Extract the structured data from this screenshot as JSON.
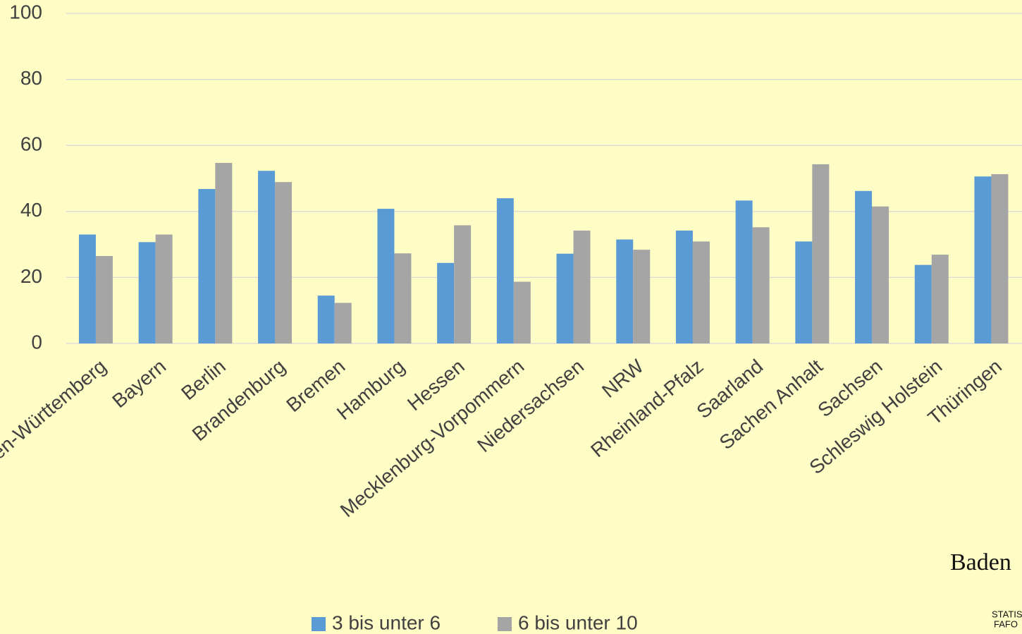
{
  "chart_data": {
    "type": "bar",
    "categories": [
      "Baden-Württemberg",
      "Bayern",
      "Berlin",
      "Brandenburg",
      "Bremen",
      "Hamburg",
      "Hessen",
      "Mecklenburg-Vorpommern",
      "Niedersachsen",
      "NRW",
      "Rheinland-Pfalz",
      "Saarland",
      "Sachen Anhalt",
      "Sachsen",
      "Schleswig Holstein",
      "Thüringen"
    ],
    "series": [
      {
        "name": "3 bis unter 6",
        "color": "#5b9bd5",
        "values": [
          33,
          30.7,
          46.8,
          52.3,
          14.5,
          40.8,
          24.4,
          44,
          27.2,
          31.5,
          34.2,
          43.3,
          30.9,
          46.2,
          23.8,
          50.6
        ]
      },
      {
        "name": "6 bis unter 10",
        "color": "#a5a5a5",
        "values": [
          26.5,
          33,
          54.7,
          48.9,
          12.3,
          27.3,
          35.8,
          18.7,
          34.2,
          28.4,
          30.9,
          35.2,
          54.3,
          41.5,
          26.9,
          51.3
        ]
      }
    ],
    "ylim": [
      0,
      100
    ],
    "yticks": [
      0,
      20,
      40,
      60,
      80,
      100
    ],
    "grid": true,
    "legend": "bottom"
  },
  "logo": {
    "name": "Baden",
    "line1": "STATIS",
    "line2": "FAFO"
  }
}
